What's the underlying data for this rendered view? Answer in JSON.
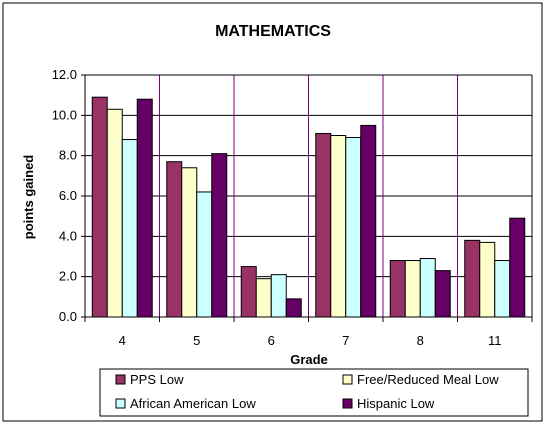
{
  "chart_data": {
    "type": "bar",
    "title": "MATHEMATICS",
    "xlabel": "Grade",
    "ylabel": "points gained",
    "categories": [
      "4",
      "5",
      "6",
      "7",
      "8",
      "11"
    ],
    "ylim": [
      0,
      12
    ],
    "yticks": [
      "0.0",
      "2.0",
      "4.0",
      "6.0",
      "8.0",
      "10.0",
      "12.0"
    ],
    "grid": true,
    "legend_position": "bottom",
    "series": [
      {
        "name": "PPS Low",
        "color": "#993366",
        "values": [
          10.9,
          7.7,
          2.5,
          9.1,
          2.8,
          3.8
        ]
      },
      {
        "name": "Free/Reduced Meal Low",
        "color": "#FFFFCC",
        "values": [
          10.3,
          7.4,
          1.9,
          9.0,
          2.8,
          3.7
        ]
      },
      {
        "name": "African American Low",
        "color": "#CCFFFF",
        "values": [
          8.8,
          6.2,
          2.1,
          8.9,
          2.9,
          2.8
        ]
      },
      {
        "name": "Hispanic Low",
        "color": "#660066",
        "values": [
          10.8,
          8.1,
          0.9,
          9.5,
          2.3,
          4.9
        ]
      }
    ]
  }
}
